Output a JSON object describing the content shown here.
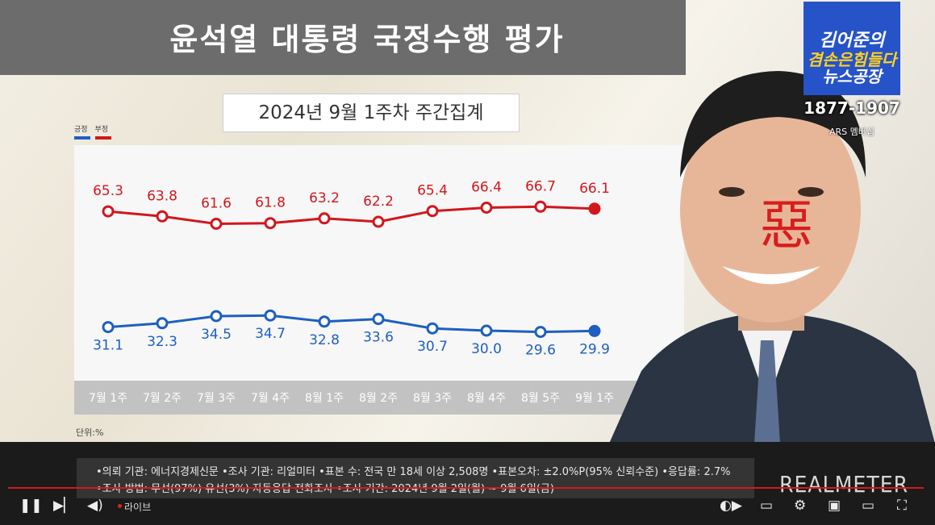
{
  "title": "윤석열 대통령 국정수행 평가",
  "subtitle": "2024년 9월 1주차 주간집계",
  "legend": {
    "approve": "긍정",
    "disapprove": "부정"
  },
  "unit": "단위:%",
  "chart_data": {
    "type": "line",
    "categories": [
      "7월 1주",
      "7월 2주",
      "7월 3주",
      "7월 4주",
      "8월 1주",
      "8월 2주",
      "8월 3주",
      "8월 4주",
      "8월 5주",
      "9월 1주"
    ],
    "series": [
      {
        "name": "부정",
        "color": "#d2161c",
        "values": [
          65.3,
          63.8,
          61.6,
          61.8,
          63.2,
          62.2,
          65.4,
          66.4,
          66.7,
          66.1
        ]
      },
      {
        "name": "긍정",
        "color": "#1d5fc2",
        "values": [
          31.1,
          32.3,
          34.5,
          34.7,
          32.8,
          33.6,
          30.7,
          30.0,
          29.6,
          29.9
        ]
      }
    ]
  },
  "brand": {
    "line1": "김어준의",
    "line2": "겸손은힘들다",
    "line3": "뉴스공장",
    "phone": "1877-1907",
    "ars": "ARS 멤버십"
  },
  "portrait_mark": "惡",
  "footer": {
    "line1": "•의뢰 기관: 에너지경제신문 •조사 기관: 리얼미터 •표본 수: 전국 만 18세 이상 2,508명 •표본오차: ±2.0%P(95% 신뢰수준) •응답률: 2.7%",
    "line2": "•조사 방법: 무선(97%)·유선(3%) 자동응답 전화조사 •조사 기간: 2024년 9월 2일(월) ~ 9월 6일(금)",
    "logo": "REALMETER"
  },
  "player": {
    "live": "라이브"
  }
}
